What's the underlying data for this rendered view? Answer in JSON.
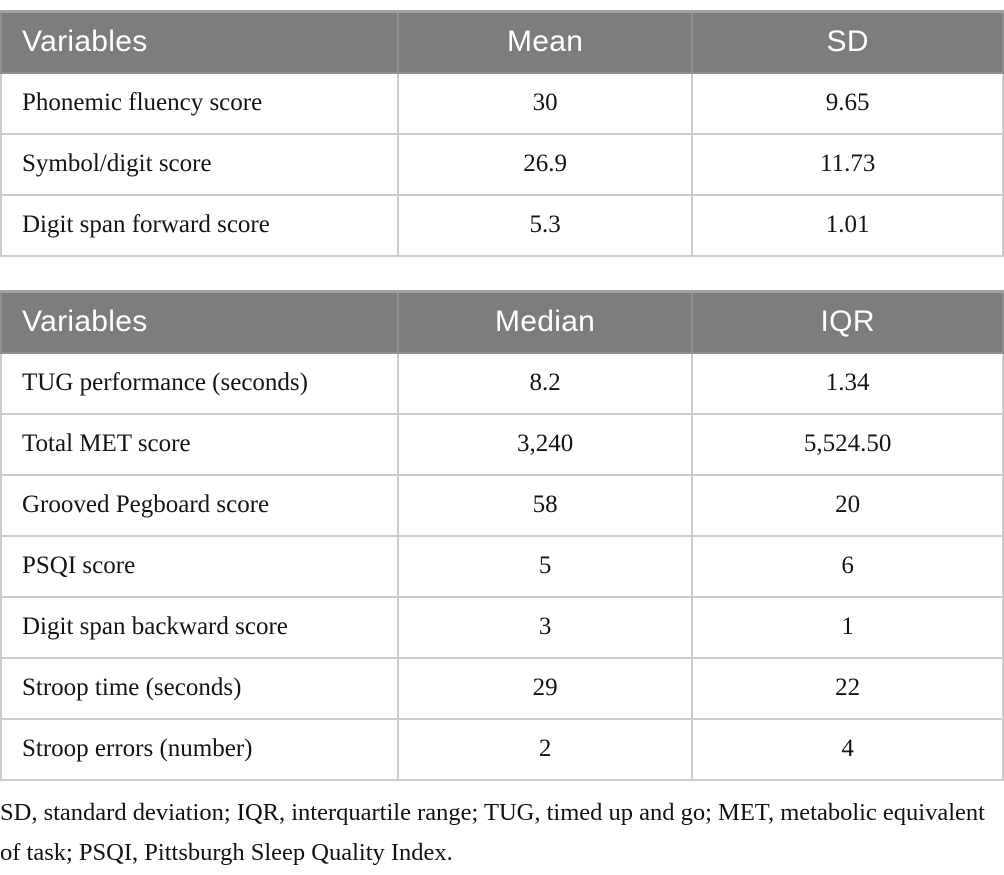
{
  "colors": {
    "header_bg": "#7d7d7d",
    "header_text": "#ffffff",
    "cell_border": "#cccccc",
    "table_edge": "#a6a6a6",
    "body_text": "#141414"
  },
  "tables": [
    {
      "headers": [
        "Variables",
        "Mean",
        "SD"
      ],
      "rows": [
        [
          "Phonemic fluency score",
          "30",
          "9.65"
        ],
        [
          "Symbol/digit score",
          "26.9",
          "11.73"
        ],
        [
          "Digit span forward score",
          "5.3",
          "1.01"
        ]
      ]
    },
    {
      "headers": [
        "Variables",
        "Median",
        "IQR"
      ],
      "rows": [
        [
          "TUG performance (seconds)",
          "8.2",
          "1.34"
        ],
        [
          "Total MET score",
          "3,240",
          "5,524.50"
        ],
        [
          "Grooved Pegboard score",
          "58",
          "20"
        ],
        [
          "PSQI score",
          "5",
          "6"
        ],
        [
          "Digit span backward score",
          "3",
          "1"
        ],
        [
          "Stroop time (seconds)",
          "29",
          "22"
        ],
        [
          "Stroop errors (number)",
          "2",
          "4"
        ]
      ]
    }
  ],
  "footnote": "SD, standard deviation; IQR, interquartile range; TUG, timed up and go; MET, metabolic equivalent of task; PSQI, Pittsburgh Sleep Quality Index."
}
